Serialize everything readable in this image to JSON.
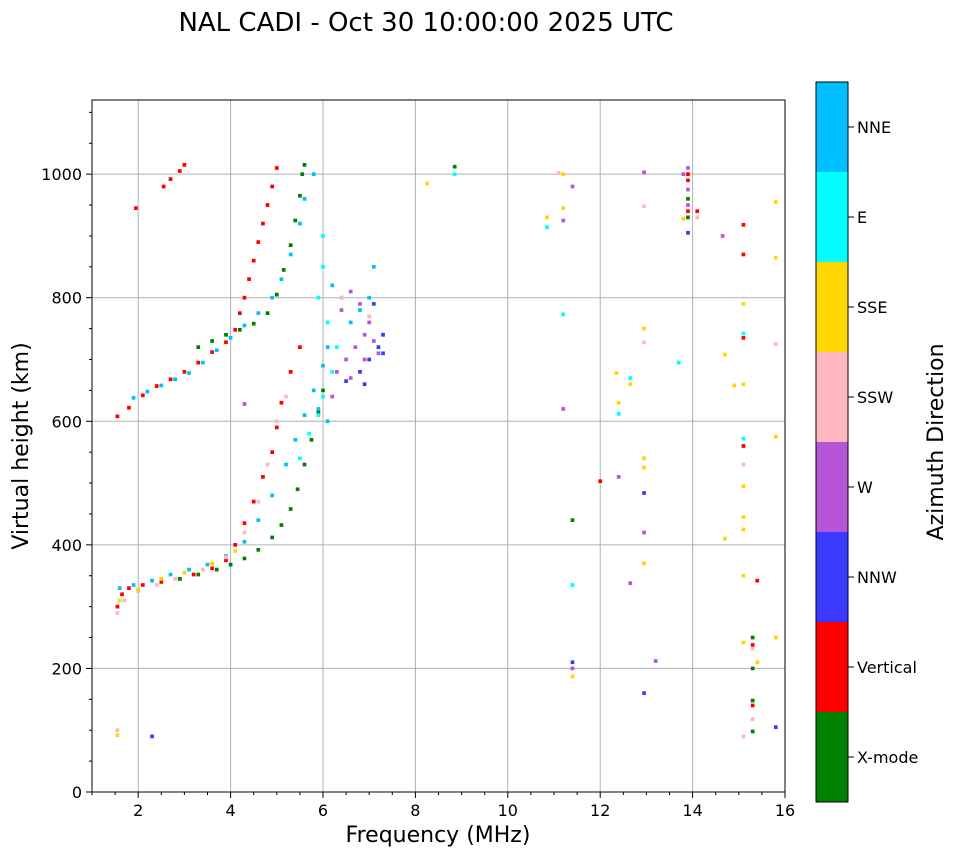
{
  "chart_data": {
    "type": "scatter",
    "title": "NAL CADI - Oct 30 10:00:00 2025 UTC",
    "xlabel": "Frequency (MHz)",
    "ylabel": "Virtual height (km)",
    "xlim": [
      1,
      16
    ],
    "ylim": [
      0,
      1120
    ],
    "xticks": [
      2,
      4,
      6,
      8,
      10,
      12,
      14,
      16
    ],
    "yticks": [
      0,
      200,
      400,
      600,
      800,
      1000
    ],
    "grid": true,
    "colorbar": {
      "label": "Azimuth Direction",
      "categories": [
        {
          "name": "X-mode",
          "color": "#008000"
        },
        {
          "name": "Vertical",
          "color": "#ff0000"
        },
        {
          "name": "NNW",
          "color": "#3a3aff"
        },
        {
          "name": "W",
          "color": "#b556d8"
        },
        {
          "name": "SSW",
          "color": "#ffb6c1"
        },
        {
          "name": "SSE",
          "color": "#ffd700"
        },
        {
          "name": "E",
          "color": "#00ffff"
        },
        {
          "name": "NNE",
          "color": "#00bfff"
        }
      ]
    },
    "cell_size": {
      "freq_mhz": 0.08,
      "height_km": 6
    },
    "traces": [
      {
        "category": "Vertical",
        "points": [
          [
            1.55,
            300
          ],
          [
            1.65,
            320
          ],
          [
            1.8,
            330
          ],
          [
            2.1,
            335
          ],
          [
            2.5,
            340
          ],
          [
            2.9,
            345
          ],
          [
            3.2,
            352
          ],
          [
            3.6,
            362
          ],
          [
            3.9,
            375
          ],
          [
            4.1,
            400
          ],
          [
            4.3,
            435
          ],
          [
            4.5,
            470
          ],
          [
            4.7,
            510
          ],
          [
            4.9,
            550
          ],
          [
            5.0,
            590
          ],
          [
            5.1,
            630
          ],
          [
            5.3,
            680
          ],
          [
            5.5,
            720
          ]
        ]
      },
      {
        "category": "NNE",
        "points": [
          [
            1.6,
            330
          ],
          [
            1.9,
            335
          ],
          [
            2.3,
            342
          ],
          [
            2.7,
            352
          ],
          [
            3.1,
            360
          ],
          [
            3.5,
            368
          ],
          [
            3.9,
            382
          ],
          [
            4.3,
            405
          ],
          [
            4.6,
            440
          ],
          [
            4.9,
            480
          ],
          [
            5.2,
            530
          ],
          [
            5.4,
            570
          ],
          [
            5.6,
            610
          ],
          [
            5.8,
            650
          ],
          [
            6.0,
            690
          ],
          [
            6.1,
            720
          ]
        ]
      },
      {
        "category": "X-mode",
        "points": [
          [
            2.9,
            345
          ],
          [
            3.3,
            352
          ],
          [
            3.7,
            360
          ],
          [
            4.0,
            368
          ],
          [
            4.3,
            378
          ],
          [
            4.6,
            392
          ],
          [
            4.9,
            412
          ],
          [
            5.1,
            432
          ],
          [
            5.3,
            458
          ],
          [
            5.45,
            490
          ],
          [
            5.6,
            530
          ],
          [
            5.75,
            570
          ],
          [
            5.9,
            615
          ],
          [
            6.0,
            650
          ]
        ]
      },
      {
        "category": "SSW",
        "points": [
          [
            1.55,
            290
          ],
          [
            1.7,
            310
          ],
          [
            2.0,
            325
          ],
          [
            2.4,
            335
          ],
          [
            2.8,
            345
          ],
          [
            3.4,
            360
          ],
          [
            3.9,
            380
          ],
          [
            4.3,
            420
          ],
          [
            4.6,
            470
          ],
          [
            4.8,
            530
          ],
          [
            5.0,
            600
          ],
          [
            5.2,
            640
          ]
        ]
      },
      {
        "category": "SSE",
        "points": [
          [
            1.6,
            310
          ],
          [
            2.0,
            328
          ],
          [
            2.5,
            345
          ],
          [
            3.0,
            355
          ],
          [
            3.6,
            370
          ],
          [
            4.1,
            390
          ]
        ]
      },
      {
        "category": "E",
        "points": [
          [
            5.5,
            540
          ],
          [
            5.7,
            580
          ],
          [
            5.9,
            610
          ],
          [
            6.0,
            640
          ],
          [
            6.2,
            680
          ],
          [
            6.3,
            720
          ],
          [
            6.1,
            760
          ],
          [
            5.9,
            800
          ],
          [
            6.0,
            850
          ],
          [
            6.0,
            900
          ]
        ]
      },
      {
        "category": "Vertical",
        "points": [
          [
            1.55,
            608
          ],
          [
            1.8,
            622
          ],
          [
            2.1,
            642
          ],
          [
            2.4,
            657
          ],
          [
            2.7,
            668
          ],
          [
            3.0,
            680
          ],
          [
            3.3,
            695
          ],
          [
            3.6,
            712
          ],
          [
            3.9,
            728
          ],
          [
            4.1,
            748
          ],
          [
            4.2,
            775
          ],
          [
            4.3,
            800
          ],
          [
            4.4,
            830
          ],
          [
            4.5,
            860
          ],
          [
            4.6,
            890
          ],
          [
            4.7,
            920
          ],
          [
            4.8,
            950
          ],
          [
            4.9,
            980
          ],
          [
            5.0,
            1010
          ]
        ]
      },
      {
        "category": "NNE",
        "points": [
          [
            1.9,
            638
          ],
          [
            2.2,
            648
          ],
          [
            2.5,
            658
          ],
          [
            2.8,
            668
          ],
          [
            3.1,
            678
          ],
          [
            3.4,
            695
          ],
          [
            3.7,
            715
          ],
          [
            4.0,
            735
          ],
          [
            4.3,
            755
          ],
          [
            4.6,
            775
          ],
          [
            4.9,
            800
          ],
          [
            5.1,
            830
          ],
          [
            5.3,
            870
          ],
          [
            5.5,
            920
          ],
          [
            5.6,
            960
          ],
          [
            5.8,
            1000
          ]
        ]
      },
      {
        "category": "X-mode",
        "points": [
          [
            3.3,
            720
          ],
          [
            3.6,
            730
          ],
          [
            3.9,
            740
          ],
          [
            4.2,
            748
          ],
          [
            4.5,
            758
          ],
          [
            4.8,
            775
          ],
          [
            5.0,
            805
          ],
          [
            5.15,
            845
          ],
          [
            5.3,
            885
          ],
          [
            5.4,
            925
          ],
          [
            5.5,
            965
          ],
          [
            5.55,
            1000
          ],
          [
            5.6,
            1015
          ]
        ]
      },
      {
        "category": "Vertical",
        "points": [
          [
            2.55,
            980
          ],
          [
            2.7,
            992
          ],
          [
            2.9,
            1005
          ],
          [
            3.0,
            1015
          ],
          [
            1.95,
            945
          ]
        ]
      },
      {
        "category": "W",
        "points": [
          [
            6.3,
            680
          ],
          [
            6.5,
            700
          ],
          [
            6.7,
            720
          ],
          [
            6.9,
            740
          ],
          [
            7.0,
            760
          ],
          [
            6.8,
            790
          ],
          [
            6.6,
            810
          ],
          [
            6.4,
            780
          ],
          [
            6.6,
            670
          ],
          [
            6.9,
            700
          ],
          [
            7.1,
            730
          ],
          [
            7.2,
            710
          ],
          [
            4.3,
            628
          ],
          [
            6.2,
            640
          ]
        ]
      },
      {
        "category": "NNW",
        "points": [
          [
            6.5,
            665
          ],
          [
            6.8,
            680
          ],
          [
            7.0,
            700
          ],
          [
            7.2,
            720
          ],
          [
            7.3,
            740
          ],
          [
            7.1,
            790
          ],
          [
            6.9,
            660
          ],
          [
            2.3,
            90
          ],
          [
            7.3,
            710
          ]
        ]
      },
      {
        "category": "NNE",
        "points": [
          [
            6.2,
            820
          ],
          [
            6.4,
            800
          ],
          [
            6.6,
            760
          ],
          [
            6.8,
            780
          ],
          [
            7.0,
            800
          ],
          [
            7.1,
            850
          ],
          [
            5.9,
            620
          ],
          [
            6.1,
            600
          ]
        ]
      },
      {
        "category": "SSW",
        "points": [
          [
            1.55,
            100
          ],
          [
            6.4,
            800
          ],
          [
            7.0,
            770
          ]
        ]
      },
      {
        "category": "SSE",
        "points": [
          [
            1.55,
            92
          ],
          [
            8.25,
            985
          ],
          [
            10.85,
            930
          ],
          [
            11.2,
            945
          ]
        ]
      },
      {
        "category": "X-mode",
        "points": [
          [
            8.85,
            1012
          ],
          [
            15.3,
            250
          ],
          [
            15.3,
            148
          ],
          [
            15.3,
            98
          ],
          [
            15.3,
            200
          ],
          [
            13.9,
            960
          ],
          [
            13.9,
            930
          ],
          [
            11.4,
            440
          ]
        ]
      },
      {
        "category": "E",
        "points": [
          [
            8.85,
            1000
          ],
          [
            10.85,
            914
          ],
          [
            11.2,
            773
          ],
          [
            12.4,
            612
          ],
          [
            12.65,
            670
          ],
          [
            13.7,
            695
          ],
          [
            15.1,
            572
          ],
          [
            15.1,
            742
          ],
          [
            11.4,
            335
          ]
        ]
      },
      {
        "category": "W",
        "points": [
          [
            11.2,
            620
          ],
          [
            11.2,
            925
          ],
          [
            11.4,
            980
          ],
          [
            12.4,
            510
          ],
          [
            12.65,
            338
          ],
          [
            12.95,
            420
          ],
          [
            13.2,
            212
          ],
          [
            13.8,
            1000
          ],
          [
            13.9,
            1010
          ],
          [
            13.9,
            975
          ],
          [
            13.9,
            950
          ],
          [
            14.65,
            900
          ],
          [
            12.95,
            1003
          ],
          [
            11.4,
            200
          ]
        ]
      },
      {
        "category": "Vertical",
        "points": [
          [
            12.0,
            503
          ],
          [
            13.9,
            940
          ],
          [
            13.9,
            990
          ],
          [
            14.1,
            940
          ],
          [
            15.1,
            918
          ],
          [
            15.1,
            870
          ],
          [
            15.1,
            735
          ],
          [
            15.1,
            560
          ],
          [
            15.4,
            342
          ],
          [
            15.3,
            238
          ],
          [
            15.3,
            140
          ],
          [
            13.9,
            1000
          ]
        ]
      },
      {
        "category": "SSE",
        "points": [
          [
            11.2,
            1000
          ],
          [
            12.35,
            678
          ],
          [
            12.4,
            630
          ],
          [
            12.65,
            660
          ],
          [
            12.95,
            750
          ],
          [
            12.95,
            540
          ],
          [
            12.95,
            525
          ],
          [
            12.95,
            370
          ],
          [
            13.8,
            928
          ],
          [
            14.7,
            708
          ],
          [
            14.7,
            410
          ],
          [
            15.1,
            790
          ],
          [
            15.1,
            660
          ],
          [
            15.1,
            495
          ],
          [
            15.1,
            445
          ],
          [
            15.1,
            425
          ],
          [
            15.1,
            350
          ],
          [
            15.1,
            242
          ],
          [
            15.4,
            210
          ],
          [
            15.8,
            250
          ],
          [
            15.8,
            865
          ],
          [
            15.8,
            955
          ],
          [
            15.8,
            575
          ],
          [
            11.4,
            187
          ],
          [
            14.9,
            658
          ]
        ]
      },
      {
        "category": "SSW",
        "points": [
          [
            11.1,
            1002
          ],
          [
            12.95,
            948
          ],
          [
            12.95,
            728
          ],
          [
            15.1,
            530
          ],
          [
            15.3,
            232
          ],
          [
            15.3,
            118
          ],
          [
            15.1,
            90
          ],
          [
            15.8,
            725
          ],
          [
            14.1,
            930
          ]
        ]
      },
      {
        "category": "NNW",
        "points": [
          [
            12.95,
            484
          ],
          [
            12.95,
            160
          ],
          [
            13.9,
            905
          ],
          [
            15.8,
            105
          ],
          [
            11.4,
            210
          ]
        ]
      }
    ]
  }
}
